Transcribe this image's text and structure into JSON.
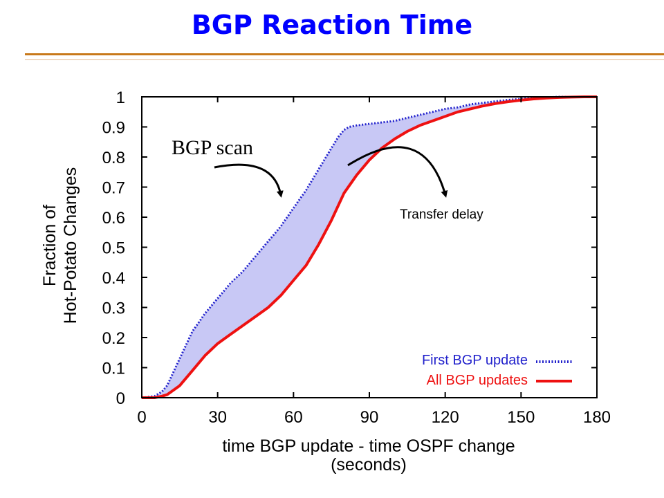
{
  "slide": {
    "title": "BGP Reaction Time",
    "accent_color": "#c8791a",
    "title_color": "#0000ff"
  },
  "chart_data": {
    "type": "line",
    "title": "",
    "xlabel": "time BGP update - time OSPF change",
    "xlabel_unit": "(seconds)",
    "ylabel_line1": "Fraction of",
    "ylabel_line2": "Hot-Potato Changes",
    "xlim": [
      0,
      180
    ],
    "ylim": [
      0,
      1
    ],
    "x_ticks": [
      0,
      30,
      60,
      90,
      120,
      150,
      180
    ],
    "x_tick_labels": [
      "0",
      "30",
      "60",
      "90",
      "120",
      "150",
      "180"
    ],
    "y_ticks": [
      0,
      0.1,
      0.2,
      0.3,
      0.4,
      0.5,
      0.6,
      0.7,
      0.8,
      0.9,
      1
    ],
    "y_tick_labels": [
      "0",
      "0.1",
      "0.2",
      "0.3",
      "0.4",
      "0.5",
      "0.6",
      "0.7",
      "0.8",
      "0.9",
      "1"
    ],
    "grid": false,
    "legend_position": "bottom-right",
    "fill_between_color": "#c8c8f5",
    "series": [
      {
        "name": "First BGP update",
        "color": "#2222cc",
        "style": "dotted",
        "x": [
          0,
          5,
          8,
          10,
          15,
          20,
          25,
          30,
          35,
          40,
          45,
          50,
          55,
          60,
          65,
          70,
          75,
          78,
          80,
          82,
          85,
          90,
          95,
          100,
          105,
          110,
          115,
          120,
          125,
          130,
          135,
          140,
          145,
          150,
          155,
          160,
          165,
          170,
          175,
          180
        ],
        "y": [
          0,
          0.005,
          0.02,
          0.04,
          0.13,
          0.22,
          0.28,
          0.33,
          0.38,
          0.42,
          0.47,
          0.52,
          0.57,
          0.63,
          0.69,
          0.76,
          0.83,
          0.87,
          0.89,
          0.9,
          0.905,
          0.91,
          0.915,
          0.92,
          0.93,
          0.94,
          0.95,
          0.96,
          0.965,
          0.975,
          0.98,
          0.985,
          0.99,
          0.993,
          0.996,
          0.998,
          1.0,
          1.0,
          1.0,
          1.0
        ]
      },
      {
        "name": "All BGP updates",
        "color": "#ee1111",
        "style": "solid",
        "x": [
          0,
          5,
          8,
          10,
          15,
          20,
          25,
          30,
          35,
          40,
          45,
          50,
          55,
          60,
          65,
          70,
          75,
          80,
          85,
          90,
          95,
          100,
          105,
          110,
          115,
          120,
          125,
          130,
          135,
          140,
          145,
          150,
          155,
          160,
          165,
          170,
          175,
          180
        ],
        "y": [
          0,
          0.0,
          0.005,
          0.01,
          0.04,
          0.09,
          0.14,
          0.18,
          0.21,
          0.24,
          0.27,
          0.3,
          0.34,
          0.39,
          0.44,
          0.51,
          0.59,
          0.68,
          0.74,
          0.79,
          0.83,
          0.86,
          0.885,
          0.905,
          0.92,
          0.935,
          0.95,
          0.96,
          0.97,
          0.978,
          0.984,
          0.989,
          0.993,
          0.996,
          0.998,
          0.999,
          1.0,
          1.0
        ]
      }
    ],
    "annotations": [
      {
        "text": "BGP scan"
      },
      {
        "text": "Transfer delay"
      }
    ]
  }
}
